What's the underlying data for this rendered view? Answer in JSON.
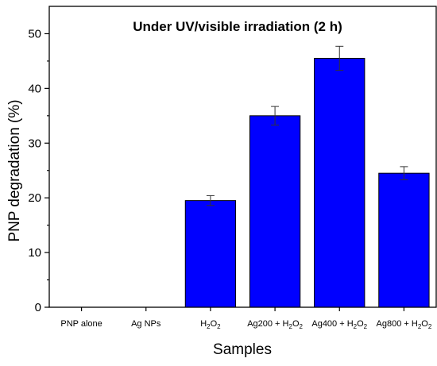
{
  "chart_data": {
    "type": "bar",
    "title": "Under UV/visible irradiation (2 h)",
    "xlabel": "Samples",
    "ylabel": "PNP degradation (%)",
    "ylim": [
      0,
      55
    ],
    "yticks": [
      0,
      10,
      20,
      30,
      40,
      50
    ],
    "categories": [
      {
        "base": "PNP alone",
        "suffix": ""
      },
      {
        "base": "Ag NPs",
        "suffix": ""
      },
      {
        "base": "",
        "suffix": "H2O2"
      },
      {
        "base": "Ag200 + ",
        "suffix": "H2O2"
      },
      {
        "base": "Ag400 + ",
        "suffix": "H2O2"
      },
      {
        "base": "Ag800 + ",
        "suffix": "H2O2"
      }
    ],
    "category_names": [
      "PNP alone",
      "Ag NPs",
      "H2O2",
      "Ag200 + H2O2",
      "Ag400 + H2O2",
      "Ag800 + H2O2"
    ],
    "values": [
      0,
      0,
      19.5,
      35,
      45.5,
      24.5
    ],
    "errors": [
      0,
      0,
      0.9,
      1.7,
      2.2,
      1.2
    ],
    "bar_color": "#0000FF",
    "bar_edge_color": "#000000",
    "grid": false,
    "legend": "none"
  }
}
